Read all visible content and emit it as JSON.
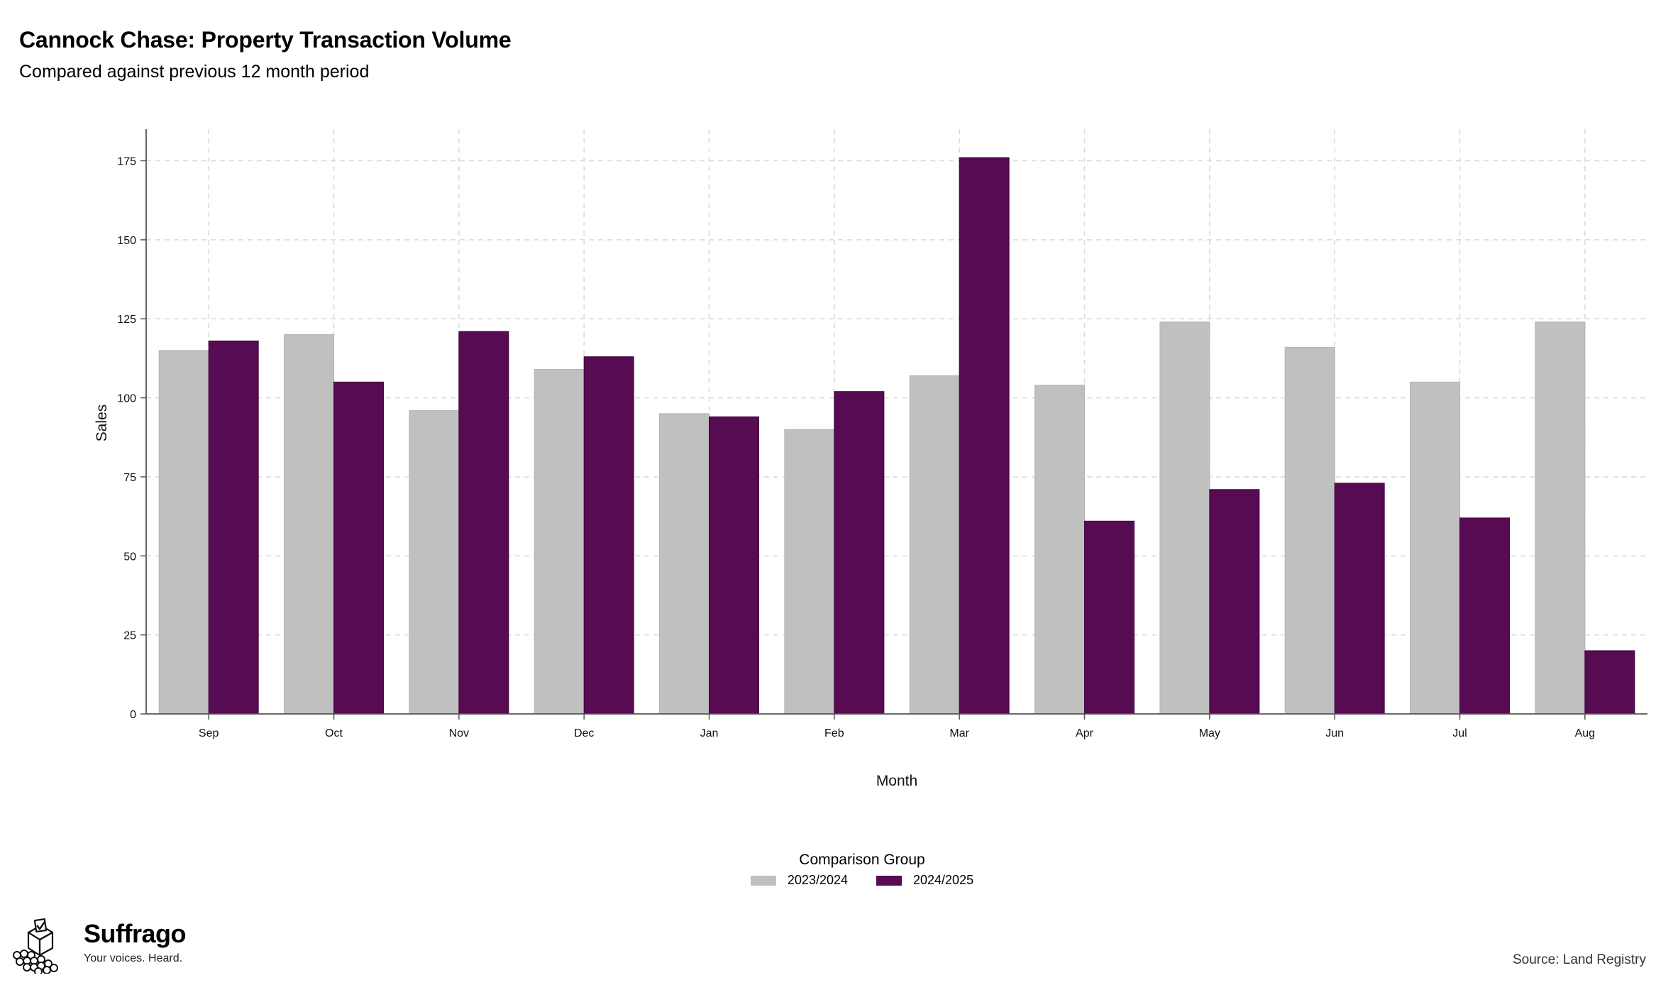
{
  "chart_data": {
    "type": "bar",
    "title": "Cannock Chase: Property Transaction Volume",
    "subtitle": "Compared against previous 12 month period",
    "xlabel": "Month",
    "ylabel": "Sales",
    "categories": [
      "Sep",
      "Oct",
      "Nov",
      "Dec",
      "Jan",
      "Feb",
      "Mar",
      "Apr",
      "May",
      "Jun",
      "Jul",
      "Aug"
    ],
    "series": [
      {
        "name": "2023/2024",
        "color": "#c0c0c0",
        "values": [
          115,
          120,
          96,
          109,
          95,
          90,
          107,
          104,
          124,
          116,
          105,
          124
        ]
      },
      {
        "name": "2024/2025",
        "color": "#560b52",
        "values": [
          118,
          105,
          121,
          113,
          94,
          102,
          176,
          61,
          71,
          73,
          62,
          20
        ]
      }
    ],
    "ylim": [
      0,
      185
    ],
    "yticks": [
      0,
      25,
      50,
      75,
      100,
      125,
      150,
      175
    ],
    "grid": true,
    "legend_title": "Comparison Group",
    "legend_position": "bottom",
    "source": "Source: Land Registry"
  },
  "branding": {
    "name": "Suffrago",
    "tagline": "Your voices. Heard."
  }
}
